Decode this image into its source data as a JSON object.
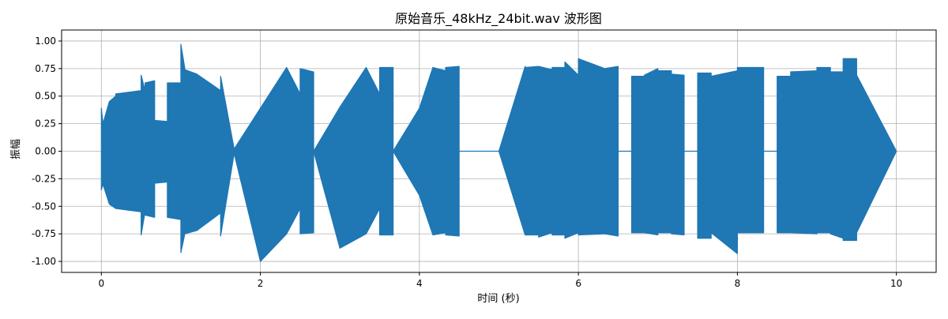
{
  "chart_data": {
    "type": "line",
    "title": "原始音乐_48kHz_24bit.wav 波形图",
    "xlabel": "时间 (秒)",
    "ylabel": "振幅",
    "xlim": [
      -0.5,
      10.5
    ],
    "ylim": [
      -1.1,
      1.1
    ],
    "x_ticks": [
      0,
      2,
      4,
      6,
      8,
      10
    ],
    "x_tick_labels": [
      "0",
      "2",
      "4",
      "6",
      "8",
      "10"
    ],
    "y_ticks": [
      1.0,
      0.75,
      0.5,
      0.25,
      0.0,
      -0.25,
      -0.5,
      -0.75,
      -1.0
    ],
    "y_tick_labels": [
      "1.00",
      "0.75",
      "0.50",
      "0.25",
      "0.00",
      "-0.25",
      "-0.50",
      "-0.75",
      "-1.00"
    ],
    "grid": true,
    "line_color": "#1f77b4",
    "series": [
      {
        "x": [
          0.0,
          0.02,
          0.1,
          0.18,
          0.18,
          0.5,
          0.5,
          0.55,
          0.55,
          0.67,
          0.67,
          0.83,
          0.83,
          1.0,
          1.0,
          1.05,
          1.05,
          1.2,
          1.5,
          1.5,
          1.67,
          1.67,
          2.0,
          2.33,
          2.33,
          2.5,
          2.5,
          2.67,
          2.67,
          3.0,
          3.33,
          3.33,
          3.5,
          3.5,
          3.67,
          3.67,
          4.0,
          4.17,
          4.17,
          4.33,
          4.33,
          4.5,
          4.5,
          4.67,
          4.67,
          5.0,
          5.33,
          5.33,
          5.5,
          5.5,
          5.67,
          5.67,
          5.83,
          5.83,
          6.0,
          6.0,
          6.33,
          6.5,
          6.5,
          6.67,
          6.67,
          6.83,
          6.83,
          7.0,
          7.0,
          7.17,
          7.17,
          7.33,
          7.33,
          7.5,
          7.5,
          7.67,
          7.67,
          8.0,
          8.0,
          8.33,
          8.33,
          8.5,
          8.5,
          8.67,
          8.67,
          9.0,
          9.0,
          9.17,
          9.17,
          9.33,
          9.33,
          9.5,
          9.5,
          10.0
        ],
        "y_max": [
          0.39,
          0.25,
          0.45,
          0.5,
          0.52,
          0.55,
          0.69,
          0.55,
          0.62,
          0.64,
          0.28,
          0.27,
          0.62,
          0.62,
          0.97,
          0.75,
          0.74,
          0.7,
          0.55,
          0.68,
          0.02,
          0.02,
          0.39,
          0.76,
          0.76,
          0.52,
          0.75,
          0.72,
          0.0,
          0.4,
          0.76,
          0.76,
          0.52,
          0.76,
          0.76,
          0.0,
          0.39,
          0.76,
          0.76,
          0.73,
          0.76,
          0.77,
          0.0,
          0.0,
          0.0,
          0.0,
          0.77,
          0.76,
          0.77,
          0.77,
          0.74,
          0.76,
          0.76,
          0.81,
          0.69,
          0.84,
          0.75,
          0.77,
          0.0,
          0.0,
          0.68,
          0.68,
          0.69,
          0.75,
          0.73,
          0.73,
          0.7,
          0.69,
          0.0,
          0.0,
          0.71,
          0.71,
          0.68,
          0.73,
          0.76,
          0.76,
          0.0,
          0.0,
          0.68,
          0.68,
          0.72,
          0.73,
          0.76,
          0.76,
          0.72,
          0.72,
          0.84,
          0.84,
          0.69,
          0.0
        ],
        "y_min": [
          -0.35,
          -0.3,
          -0.48,
          -0.52,
          -0.52,
          -0.55,
          -0.76,
          -0.55,
          -0.58,
          -0.6,
          -0.29,
          -0.28,
          -0.6,
          -0.62,
          -0.92,
          -0.75,
          -0.75,
          -0.72,
          -0.56,
          -0.77,
          -0.02,
          -0.02,
          -1.0,
          -0.75,
          -0.75,
          -0.52,
          -0.75,
          -0.74,
          -0.0,
          -0.88,
          -0.75,
          -0.75,
          -0.52,
          -0.76,
          -0.76,
          -0.0,
          -0.4,
          -0.76,
          -0.76,
          -0.74,
          -0.76,
          -0.77,
          -0.0,
          -0.0,
          -0.0,
          -0.0,
          -0.76,
          -0.76,
          -0.76,
          -0.78,
          -0.74,
          -0.76,
          -0.76,
          -0.79,
          -0.74,
          -0.76,
          -0.75,
          -0.77,
          -0.0,
          -0.0,
          -0.74,
          -0.74,
          -0.74,
          -0.76,
          -0.74,
          -0.74,
          -0.75,
          -0.76,
          -0.0,
          -0.0,
          -0.79,
          -0.79,
          -0.74,
          -0.93,
          -0.74,
          -0.74,
          -0.0,
          -0.0,
          -0.74,
          -0.74,
          -0.74,
          -0.75,
          -0.74,
          -0.74,
          -0.75,
          -0.79,
          -0.81,
          -0.81,
          -0.74,
          -0.0
        ]
      }
    ]
  }
}
